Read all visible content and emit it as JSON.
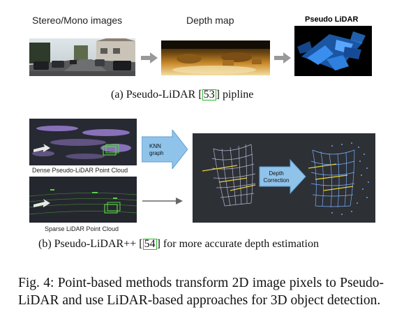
{
  "panel_a": {
    "label_stereo": "Stereo/Mono images",
    "label_depth": "Depth map",
    "label_pseudo": "Pseudo LiDAR",
    "subcaption": {
      "prefix": "(a) Pseudo-LiDAR [",
      "ref": "53",
      "suffix": "] pipline"
    }
  },
  "panel_b": {
    "label_dense": "Dense Pseudo-LiDAR Point Cloud",
    "label_sparse": "Sparse LiDAR Point Cloud",
    "knn_label": "KNN graph",
    "depth_label": "Depth Correction",
    "subcaption": {
      "prefix": "(b) Pseudo-LiDAR++ [",
      "ref": "54",
      "suffix": "] for more accurate depth estimation"
    }
  },
  "figure_caption": "Fig. 4: Point-based methods transform 2D image pixels to Pseudo-LiDAR and use LiDAR-based approaches for 3D object detection.",
  "colors": {
    "arrow_gray": "#999999",
    "arrow_blue": "#8fc3ea",
    "cite_green": "#2eb82e",
    "lidar_blue": "#2a78d8",
    "dense_purple": "#a989e6",
    "sparse_green": "#5bd14a"
  }
}
